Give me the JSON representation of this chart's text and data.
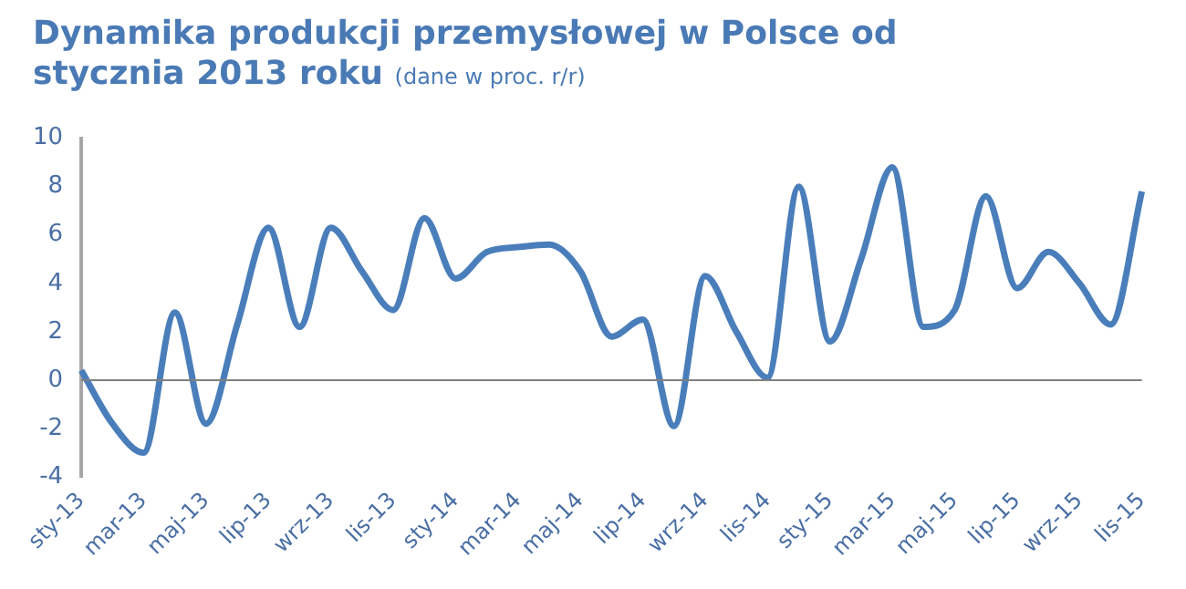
{
  "chart_data": {
    "type": "line",
    "title": "Dynamika produkcji przemysłowej w Polsce od stycznia 2013 roku",
    "subtitle": "(dane w proc. r/r)",
    "categories": [
      "sty-13",
      null,
      "mar-13",
      null,
      "maj-13",
      null,
      "lip-13",
      null,
      "wrz-13",
      null,
      "lis-13",
      null,
      "sty-14",
      null,
      "mar-14",
      null,
      "maj-14",
      null,
      "lip-14",
      null,
      "wrz-14",
      null,
      "lis-14",
      null,
      "sty-15",
      null,
      "mar-15",
      null,
      "maj-15",
      null,
      "lip-15",
      null,
      "wrz-15",
      null,
      "lis-15"
    ],
    "series": [
      {
        "color": "#4a7ebb",
        "values": [
          0.4,
          -1.8,
          -3.0,
          2.8,
          -1.8,
          2.3,
          6.3,
          2.2,
          6.3,
          4.5,
          2.9,
          6.7,
          4.2,
          5.3,
          5.5,
          5.6,
          4.5,
          1.8,
          2.5,
          -1.9,
          4.3,
          2.0,
          0.1,
          8.0,
          1.6,
          5.0,
          8.8,
          2.2,
          2.9,
          7.6,
          3.8,
          5.3,
          4.0,
          2.3,
          7.8
        ]
      }
    ],
    "ylim": [
      -4,
      10
    ],
    "yticks": [
      -4,
      -2,
      0,
      2,
      4,
      6,
      8,
      10
    ],
    "grid": false,
    "legend": false,
    "marker": "none",
    "line_style": "solid",
    "ref_lines": [
      {
        "axis": "y",
        "value": 0,
        "color": "#7f7f7f"
      }
    ]
  }
}
